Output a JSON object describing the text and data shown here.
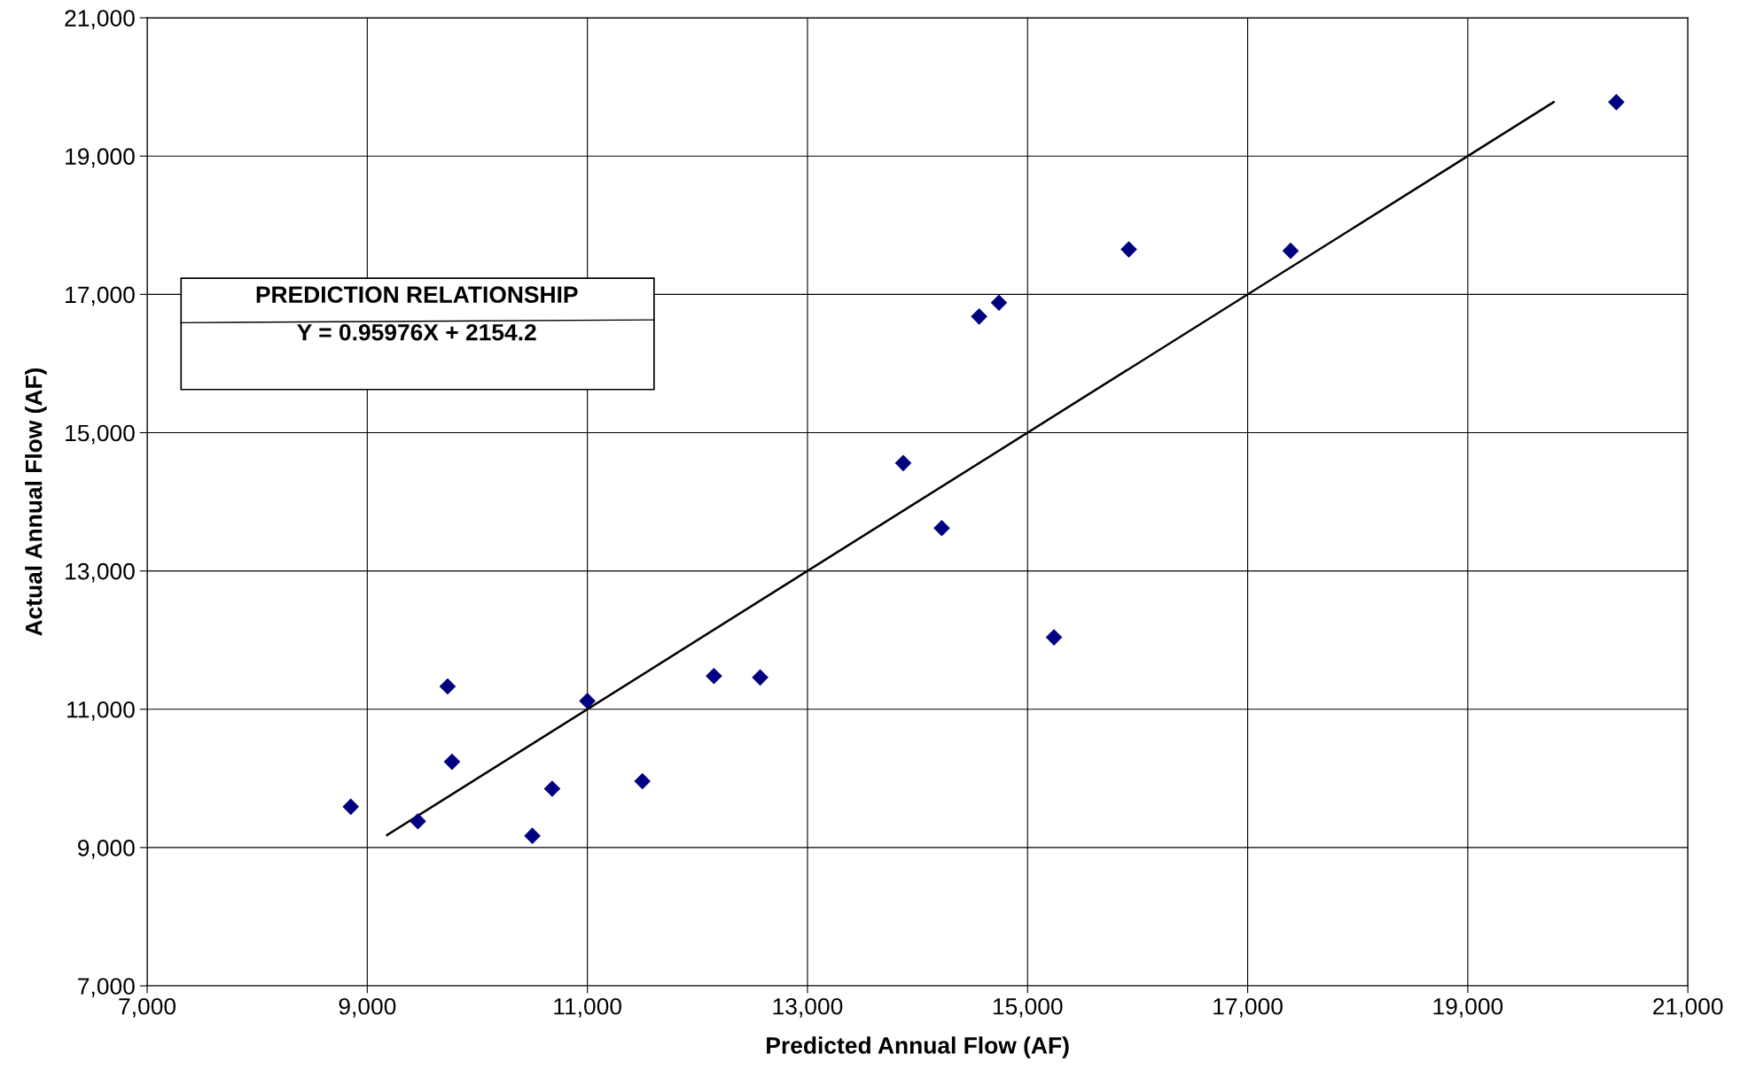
{
  "chart_data": {
    "type": "scatter",
    "xlabel": "Predicted Annual Flow (AF)",
    "ylabel": "Actual Annual Flow (AF)",
    "annotations": [
      "PREDICTION RELATIONSHIP",
      "Y = 0.95976X + 2154.2"
    ],
    "xlim": [
      7000,
      21000
    ],
    "ylim": [
      7000,
      21000
    ],
    "xticks": [
      {
        "value": 7000,
        "label": "7,000"
      },
      {
        "value": 9000,
        "label": "9,000"
      },
      {
        "value": 11000,
        "label": "11,000"
      },
      {
        "value": 13000,
        "label": "13,000"
      },
      {
        "value": 15000,
        "label": "15,000"
      },
      {
        "value": 17000,
        "label": "17,000"
      },
      {
        "value": 19000,
        "label": "19,000"
      },
      {
        "value": 21000,
        "label": "21,000"
      }
    ],
    "yticks": [
      {
        "value": 7000,
        "label": "7,000"
      },
      {
        "value": 9000,
        "label": "9,000"
      },
      {
        "value": 11000,
        "label": "11,000"
      },
      {
        "value": 13000,
        "label": "13,000"
      },
      {
        "value": 15000,
        "label": "15,000"
      },
      {
        "value": 17000,
        "label": "17,000"
      },
      {
        "value": 19000,
        "label": "19,000"
      },
      {
        "value": 21000,
        "label": "21,000"
      }
    ],
    "grid": true,
    "marker": "diamond",
    "series": [
      {
        "color": "#000080",
        "x": [
          8850,
          9460,
          9730,
          9770,
          10500,
          10680,
          11000,
          11500,
          12150,
          12570,
          13870,
          14220,
          14560,
          14740,
          15240,
          15920,
          17390,
          20350
        ],
        "values": [
          9590,
          9380,
          11330,
          10240,
          9170,
          9850,
          11120,
          9960,
          11480,
          11460,
          14560,
          13620,
          16680,
          16880,
          12040,
          17650,
          17630,
          19780
        ]
      },
      {
        "type": "line",
        "color": "#000000",
        "marker": "none",
        "x": [
          9180,
          19780
        ],
        "values": [
          9180,
          19780
        ]
      }
    ]
  }
}
